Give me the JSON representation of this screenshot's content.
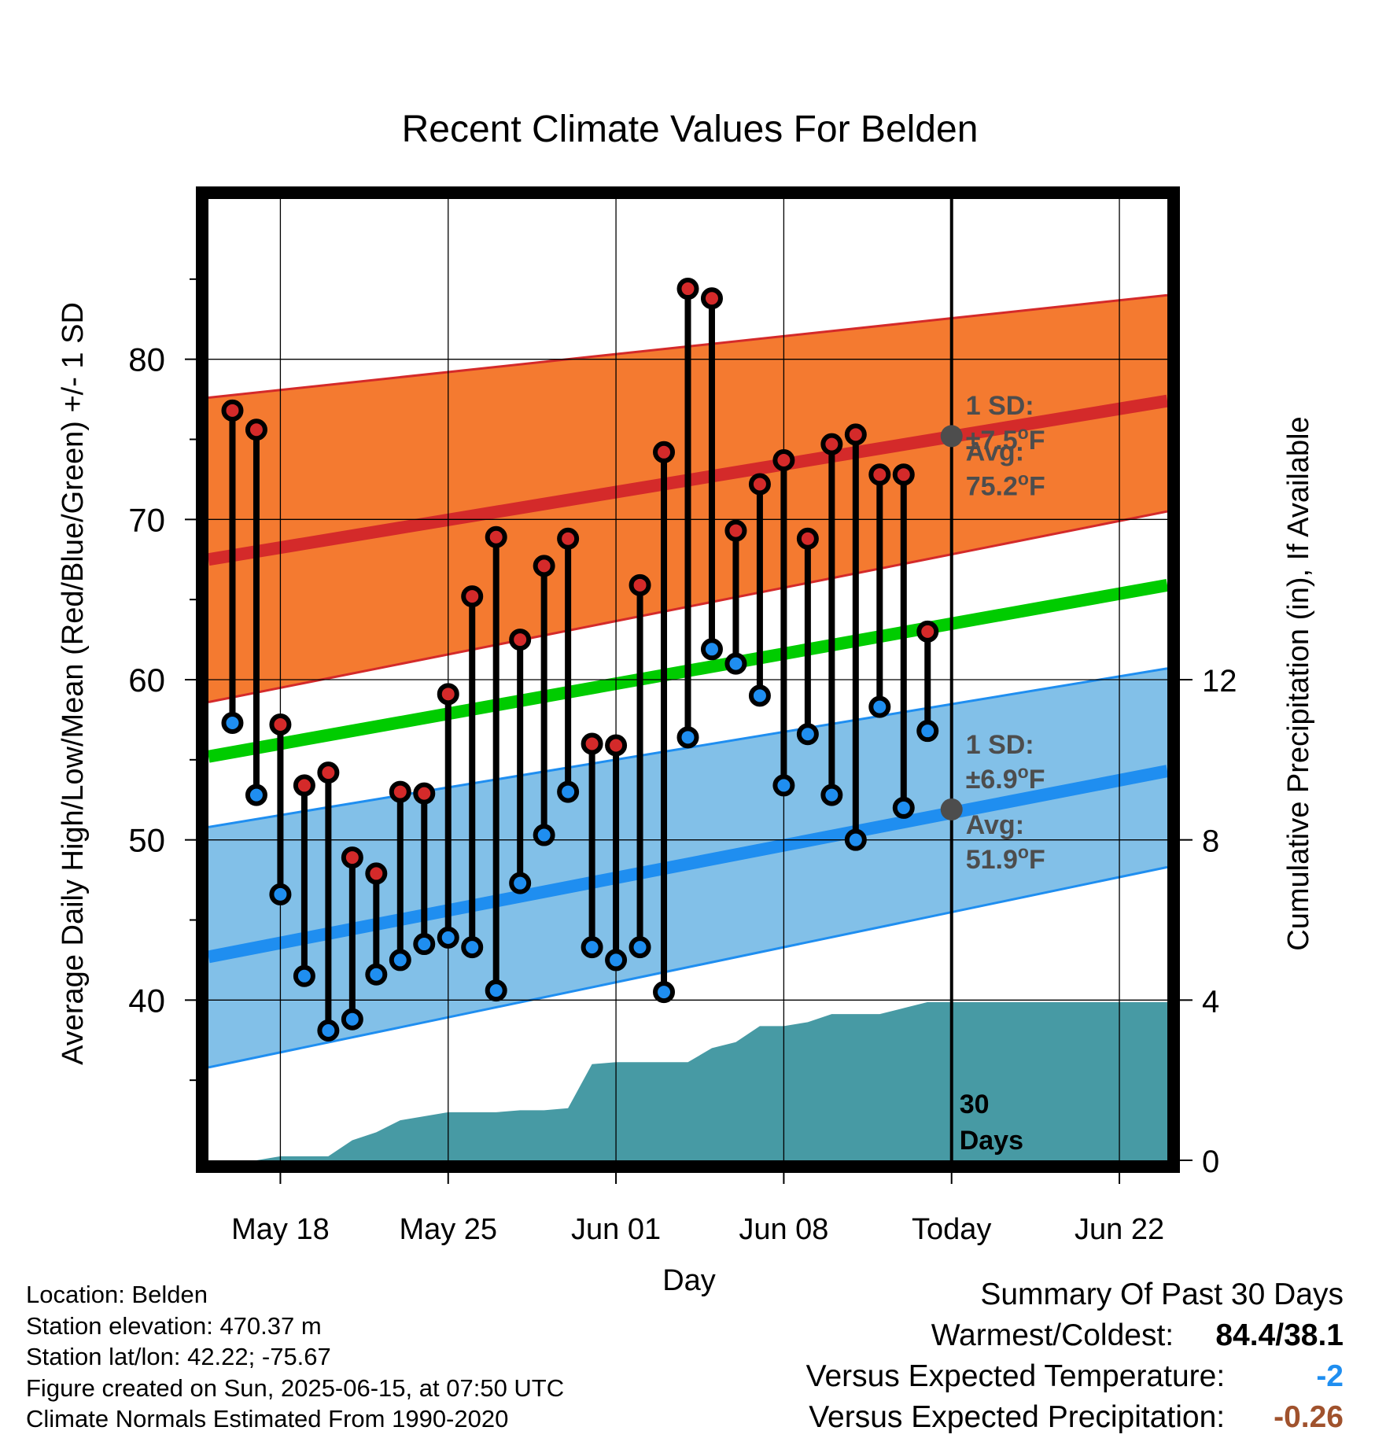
{
  "chart_data": {
    "type": "line",
    "title": "Recent Climate Values For Belden",
    "xlabel": "Day",
    "ylabel": "Average Daily High/Low/Mean (Red/Blue/Green) +/- 1 SD",
    "y2label": "Cumulative Precipitation (in), If Available",
    "x_ticks": [
      "May 18",
      "May 25",
      "Jun 01",
      "Jun 08",
      "Today",
      "Jun 22"
    ],
    "x_tick_dates": [
      "2025-05-18",
      "2025-05-25",
      "2025-06-01",
      "2025-06-08",
      "2025-06-15",
      "2025-06-22"
    ],
    "x_range": [
      "2025-05-15",
      "2025-06-24"
    ],
    "today": "2025-06-15",
    "ylim": [
      30,
      90
    ],
    "y_ticks": [
      40,
      50,
      60,
      70,
      80
    ],
    "y2lim": [
      0,
      24
    ],
    "y2_ticks": [
      0,
      4,
      8,
      12
    ],
    "grid": true,
    "colors": {
      "high_band": "#f47a30",
      "high_line": "#d42a2a",
      "low_band": "#82c0e8",
      "low_line": "#1f8ef0",
      "mean_line": "#00cc00",
      "precip_fill": "#479aa4",
      "high_marker": "#d42a2a",
      "low_marker": "#1f8ef0",
      "annotation": "#4d4d4d"
    },
    "normals": {
      "high_avg": {
        "dates": [
          "2025-05-15",
          "2025-06-24"
        ],
        "values": [
          67.5,
          77.4
        ]
      },
      "high_upper": {
        "dates": [
          "2025-05-15",
          "2025-06-24"
        ],
        "values": [
          77.6,
          84.0
        ]
      },
      "high_lower": {
        "dates": [
          "2025-05-15",
          "2025-06-24"
        ],
        "values": [
          58.6,
          70.5
        ]
      },
      "mean": {
        "dates": [
          "2025-05-15",
          "2025-06-24"
        ],
        "values": [
          55.2,
          65.9
        ]
      },
      "low_avg": {
        "dates": [
          "2025-05-15",
          "2025-06-24"
        ],
        "values": [
          42.7,
          54.3
        ]
      },
      "low_upper": {
        "dates": [
          "2025-05-15",
          "2025-06-24"
        ],
        "values": [
          50.8,
          60.7
        ]
      },
      "low_lower": {
        "dates": [
          "2025-05-15",
          "2025-06-24"
        ],
        "values": [
          35.8,
          48.3
        ]
      }
    },
    "series": [
      {
        "name": "High",
        "dates": [
          "2025-05-16",
          "2025-05-17",
          "2025-05-18",
          "2025-05-19",
          "2025-05-20",
          "2025-05-21",
          "2025-05-22",
          "2025-05-23",
          "2025-05-24",
          "2025-05-25",
          "2025-05-26",
          "2025-05-27",
          "2025-05-28",
          "2025-05-29",
          "2025-05-30",
          "2025-05-31",
          "2025-06-01",
          "2025-06-02",
          "2025-06-03",
          "2025-06-04",
          "2025-06-05",
          "2025-06-06",
          "2025-06-07",
          "2025-06-08",
          "2025-06-09",
          "2025-06-10",
          "2025-06-11",
          "2025-06-12",
          "2025-06-13",
          "2025-06-14"
        ],
        "values": [
          76.8,
          75.6,
          57.2,
          53.4,
          54.2,
          48.9,
          47.9,
          53.0,
          52.9,
          59.1,
          65.2,
          68.9,
          62.5,
          67.1,
          68.8,
          56.0,
          55.9,
          65.9,
          74.2,
          84.4,
          83.8,
          69.3,
          72.2,
          73.7,
          68.8,
          74.7,
          75.3,
          72.8,
          72.8,
          63.0
        ]
      },
      {
        "name": "Low",
        "dates": [
          "2025-05-16",
          "2025-05-17",
          "2025-05-18",
          "2025-05-19",
          "2025-05-20",
          "2025-05-21",
          "2025-05-22",
          "2025-05-23",
          "2025-05-24",
          "2025-05-25",
          "2025-05-26",
          "2025-05-27",
          "2025-05-28",
          "2025-05-29",
          "2025-05-30",
          "2025-05-31",
          "2025-06-01",
          "2025-06-02",
          "2025-06-03",
          "2025-06-04",
          "2025-06-05",
          "2025-06-06",
          "2025-06-07",
          "2025-06-08",
          "2025-06-09",
          "2025-06-10",
          "2025-06-11",
          "2025-06-12",
          "2025-06-13",
          "2025-06-14"
        ],
        "values": [
          57.3,
          52.8,
          46.6,
          41.5,
          38.1,
          38.8,
          41.6,
          42.5,
          43.5,
          43.9,
          43.3,
          40.6,
          47.3,
          50.3,
          53.0,
          43.3,
          42.5,
          43.3,
          40.5,
          56.4,
          61.9,
          61.0,
          59.0,
          53.4,
          56.6,
          52.8,
          50.0,
          58.3,
          52.0,
          56.8
        ]
      }
    ],
    "precipitation": {
      "dates": [
        "2025-05-16",
        "2025-05-17",
        "2025-05-18",
        "2025-05-19",
        "2025-05-20",
        "2025-05-21",
        "2025-05-22",
        "2025-05-23",
        "2025-05-24",
        "2025-05-25",
        "2025-05-26",
        "2025-05-27",
        "2025-05-28",
        "2025-05-29",
        "2025-05-30",
        "2025-05-31",
        "2025-06-01",
        "2025-06-02",
        "2025-06-03",
        "2025-06-04",
        "2025-06-05",
        "2025-06-06",
        "2025-06-07",
        "2025-06-08",
        "2025-06-09",
        "2025-06-10",
        "2025-06-11",
        "2025-06-12",
        "2025-06-13",
        "2025-06-14",
        "2025-06-24"
      ],
      "values": [
        0.0,
        0.0,
        0.1,
        0.1,
        0.1,
        0.5,
        0.7,
        1.0,
        1.1,
        1.2,
        1.2,
        1.2,
        1.25,
        1.25,
        1.3,
        2.4,
        2.45,
        2.45,
        2.45,
        2.45,
        2.8,
        2.95,
        3.35,
        3.35,
        3.45,
        3.65,
        3.65,
        3.65,
        3.8,
        3.95,
        3.95
      ]
    },
    "annotations": {
      "high_sd": "1 SD:",
      "high_sd_value": "±7.5",
      "high_avg": "Avg:",
      "high_avg_value": "75.2",
      "low_sd": "1 SD:",
      "low_sd_value": "±6.9",
      "low_avg": "Avg:",
      "low_avg_value": "51.9",
      "unit_sup": "o",
      "unit_letter": "F",
      "window_number": "30",
      "window_word": "Days",
      "high_avg_today": 75.2,
      "low_avg_today": 51.9
    }
  },
  "info": {
    "location": "Location: Belden",
    "elevation": "Station elevation: 470.37 m",
    "latlon": "Station lat/lon: 42.22; -75.67",
    "created": "Figure created on Sun, 2025-06-15, at 07:50 UTC",
    "normals": "Climate Normals Estimated From 1990-2020"
  },
  "summary": {
    "title": "Summary Of Past 30 Days",
    "warmest_coldest_label": "Warmest/Coldest:",
    "warmest_coldest_value": "84.4/38.1",
    "temp_label": "Versus Expected Temperature:",
    "temp_value": "-2",
    "temp_color": "#1f8ef0",
    "precip_label": "Versus Expected Precipitation:",
    "precip_value": "-0.26",
    "precip_color": "#a0522d"
  }
}
